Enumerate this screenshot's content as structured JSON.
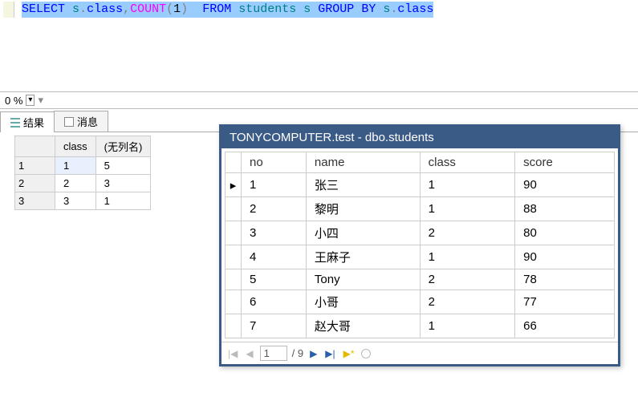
{
  "sql": {
    "tokens": [
      {
        "t": "SELECT",
        "c": "kw-blue"
      },
      {
        "t": " ",
        "c": ""
      },
      {
        "t": "s",
        "c": "kw-teal"
      },
      {
        "t": ".",
        "c": "kw-gray"
      },
      {
        "t": "class",
        "c": "kw-blue"
      },
      {
        "t": ",",
        "c": "kw-gray"
      },
      {
        "t": "COUNT",
        "c": "kw-pink"
      },
      {
        "t": "(",
        "c": "kw-gray"
      },
      {
        "t": "1",
        "c": "kw-black"
      },
      {
        "t": ")",
        "c": "kw-gray"
      },
      {
        "t": "  ",
        "c": ""
      },
      {
        "t": "FROM",
        "c": "kw-blue"
      },
      {
        "t": " ",
        "c": ""
      },
      {
        "t": "students",
        "c": "kw-teal"
      },
      {
        "t": " ",
        "c": ""
      },
      {
        "t": "s",
        "c": "kw-teal"
      },
      {
        "t": " ",
        "c": ""
      },
      {
        "t": "GROUP",
        "c": "kw-blue"
      },
      {
        "t": " ",
        "c": ""
      },
      {
        "t": "BY",
        "c": "kw-blue"
      },
      {
        "t": " ",
        "c": ""
      },
      {
        "t": "s",
        "c": "kw-teal"
      },
      {
        "t": ".",
        "c": "kw-gray"
      },
      {
        "t": "class",
        "c": "kw-blue"
      }
    ]
  },
  "pct": {
    "value": "0 %"
  },
  "tabs": {
    "results": "结果",
    "messages": "消息"
  },
  "results": {
    "columns": [
      "class",
      "(无列名)"
    ],
    "rows": [
      [
        "1",
        "5"
      ],
      [
        "2",
        "3"
      ],
      [
        "3",
        "1"
      ]
    ]
  },
  "dataWindow": {
    "title": "TONYCOMPUTER.test - dbo.students",
    "columns": [
      "no",
      "name",
      "class",
      "score"
    ],
    "rows": [
      [
        "1",
        "张三",
        "1",
        "90"
      ],
      [
        "2",
        "黎明",
        "1",
        "88"
      ],
      [
        "3",
        "小四",
        "2",
        "80"
      ],
      [
        "4",
        "王麻子",
        "1",
        "90"
      ],
      [
        "5",
        "Tony",
        "2",
        "78"
      ],
      [
        "6",
        "小哥",
        "2",
        "77"
      ],
      [
        "7",
        "赵大哥",
        "1",
        "66"
      ]
    ],
    "pager": {
      "current": "1",
      "total": "/ 9"
    }
  }
}
